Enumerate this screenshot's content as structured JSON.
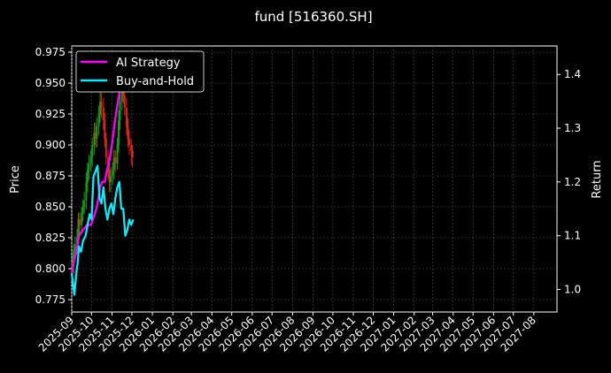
{
  "chart_data": {
    "type": "line",
    "title": "fund [516360.SH]",
    "ylabel_left": "Price",
    "ylabel_right": "Return",
    "grid": true,
    "legend_position": "top-left",
    "x_ticks": [
      "2025-09",
      "2025-10",
      "2025-11",
      "2025-12",
      "2026-01",
      "2026-02",
      "2026-03",
      "2026-04",
      "2026-05",
      "2026-06",
      "2026-07",
      "2026-08",
      "2026-09",
      "2026-10",
      "2026-11",
      "2026-12",
      "2027-01",
      "2027-02",
      "2027-03",
      "2027-04",
      "2027-05",
      "2027-06",
      "2027-07",
      "2027-08"
    ],
    "x_range": [
      "2025-09-01",
      "2027-09-05"
    ],
    "left_axis": {
      "range": [
        0.765,
        0.98
      ],
      "ticks": [
        "0.775",
        "0.800",
        "0.825",
        "0.850",
        "0.875",
        "0.900",
        "0.925",
        "0.950",
        "0.975"
      ]
    },
    "right_axis": {
      "range": [
        0.958,
        1.453
      ],
      "ticks": [
        "1.0",
        "1.1",
        "1.2",
        "1.3",
        "1.4"
      ]
    },
    "series": [
      {
        "name": "AI Strategy",
        "axis": "right",
        "color": "#ff00ff",
        "x": [
          "2025-09-01",
          "2025-09-04",
          "2025-09-08",
          "2025-09-12",
          "2025-09-18",
          "2025-09-24",
          "2025-09-30",
          "2025-10-06",
          "2025-10-10",
          "2025-10-14",
          "2025-10-17",
          "2025-10-21",
          "2025-10-24",
          "2025-10-28",
          "2025-11-01",
          "2025-11-05",
          "2025-11-10",
          "2025-11-14",
          "2025-11-18",
          "2025-11-22",
          "2025-11-26",
          "2025-11-30",
          "2025-12-03"
        ],
        "values": [
          1.03,
          1.05,
          1.07,
          1.1,
          1.11,
          1.12,
          1.12,
          1.14,
          1.16,
          1.19,
          1.2,
          1.2,
          1.22,
          1.24,
          1.27,
          1.31,
          1.35,
          1.38,
          1.38,
          1.39,
          1.39,
          1.38,
          1.38
        ]
      },
      {
        "name": "Buy-and-Hold",
        "axis": "right",
        "color": "#19e6f5",
        "x": [
          "2025-09-01",
          "2025-09-03",
          "2025-09-05",
          "2025-09-08",
          "2025-09-10",
          "2025-09-12",
          "2025-09-15",
          "2025-09-18",
          "2025-09-22",
          "2025-09-25",
          "2025-09-28",
          "2025-10-01",
          "2025-10-04",
          "2025-10-07",
          "2025-10-10",
          "2025-10-13",
          "2025-10-16",
          "2025-10-19",
          "2025-10-22",
          "2025-10-25",
          "2025-10-28",
          "2025-10-31",
          "2025-11-03",
          "2025-11-06",
          "2025-11-09",
          "2025-11-12",
          "2025-11-15",
          "2025-11-18",
          "2025-11-21",
          "2025-11-24",
          "2025-11-27",
          "2025-11-30",
          "2025-12-03"
        ],
        "values": [
          1.03,
          1.01,
          0.99,
          1.03,
          1.05,
          1.08,
          1.07,
          1.09,
          1.1,
          1.12,
          1.14,
          1.13,
          1.21,
          1.22,
          1.23,
          1.17,
          1.16,
          1.19,
          1.15,
          1.13,
          1.15,
          1.16,
          1.14,
          1.17,
          1.19,
          1.2,
          1.15,
          1.15,
          1.1,
          1.11,
          1.13,
          1.12,
          1.13
        ]
      }
    ],
    "candles": {
      "axis": "left",
      "up_color": "#1a9a1a",
      "down_color": "#d62a1a",
      "x": [
        "2025-09-02",
        "2025-09-04",
        "2025-09-06",
        "2025-09-09",
        "2025-09-11",
        "2025-09-13",
        "2025-09-16",
        "2025-09-18",
        "2025-09-20",
        "2025-09-23",
        "2025-09-25",
        "2025-09-27",
        "2025-09-30",
        "2025-10-02",
        "2025-10-05",
        "2025-10-07",
        "2025-10-09",
        "2025-10-12",
        "2025-10-14",
        "2025-10-16",
        "2025-10-19",
        "2025-10-21",
        "2025-10-23",
        "2025-10-26",
        "2025-10-28",
        "2025-10-30",
        "2025-11-02",
        "2025-11-04",
        "2025-11-06",
        "2025-11-09",
        "2025-11-11",
        "2025-11-13",
        "2025-11-16",
        "2025-11-18",
        "2025-11-20",
        "2025-11-23",
        "2025-11-25",
        "2025-11-27",
        "2025-11-30",
        "2025-12-02"
      ],
      "open": [
        0.8,
        0.805,
        0.815,
        0.82,
        0.825,
        0.84,
        0.835,
        0.845,
        0.85,
        0.855,
        0.87,
        0.88,
        0.885,
        0.89,
        0.9,
        0.91,
        0.905,
        0.915,
        0.925,
        0.935,
        0.93,
        0.92,
        0.905,
        0.89,
        0.88,
        0.87,
        0.875,
        0.88,
        0.89,
        0.885,
        0.9,
        0.92,
        0.935,
        0.945,
        0.94,
        0.93,
        0.915,
        0.905,
        0.9,
        0.895
      ],
      "close": [
        0.805,
        0.815,
        0.82,
        0.825,
        0.84,
        0.835,
        0.845,
        0.85,
        0.855,
        0.87,
        0.88,
        0.885,
        0.89,
        0.9,
        0.91,
        0.905,
        0.915,
        0.925,
        0.935,
        0.93,
        0.92,
        0.905,
        0.89,
        0.88,
        0.87,
        0.875,
        0.88,
        0.89,
        0.885,
        0.9,
        0.92,
        0.935,
        0.945,
        0.94,
        0.93,
        0.915,
        0.905,
        0.9,
        0.895,
        0.89
      ],
      "high": [
        0.812,
        0.82,
        0.826,
        0.832,
        0.845,
        0.846,
        0.85,
        0.856,
        0.862,
        0.878,
        0.886,
        0.892,
        0.896,
        0.906,
        0.918,
        0.918,
        0.922,
        0.932,
        0.945,
        0.942,
        0.938,
        0.926,
        0.91,
        0.896,
        0.886,
        0.882,
        0.886,
        0.896,
        0.896,
        0.906,
        0.928,
        0.942,
        0.955,
        0.962,
        0.946,
        0.938,
        0.922,
        0.912,
        0.905,
        0.9
      ],
      "low": [
        0.79,
        0.796,
        0.808,
        0.812,
        0.818,
        0.826,
        0.828,
        0.838,
        0.844,
        0.848,
        0.862,
        0.872,
        0.878,
        0.882,
        0.892,
        0.898,
        0.898,
        0.908,
        0.918,
        0.922,
        0.912,
        0.898,
        0.884,
        0.872,
        0.862,
        0.862,
        0.868,
        0.872,
        0.878,
        0.88,
        0.894,
        0.912,
        0.928,
        0.934,
        0.924,
        0.908,
        0.898,
        0.892,
        0.884,
        0.882
      ]
    }
  }
}
